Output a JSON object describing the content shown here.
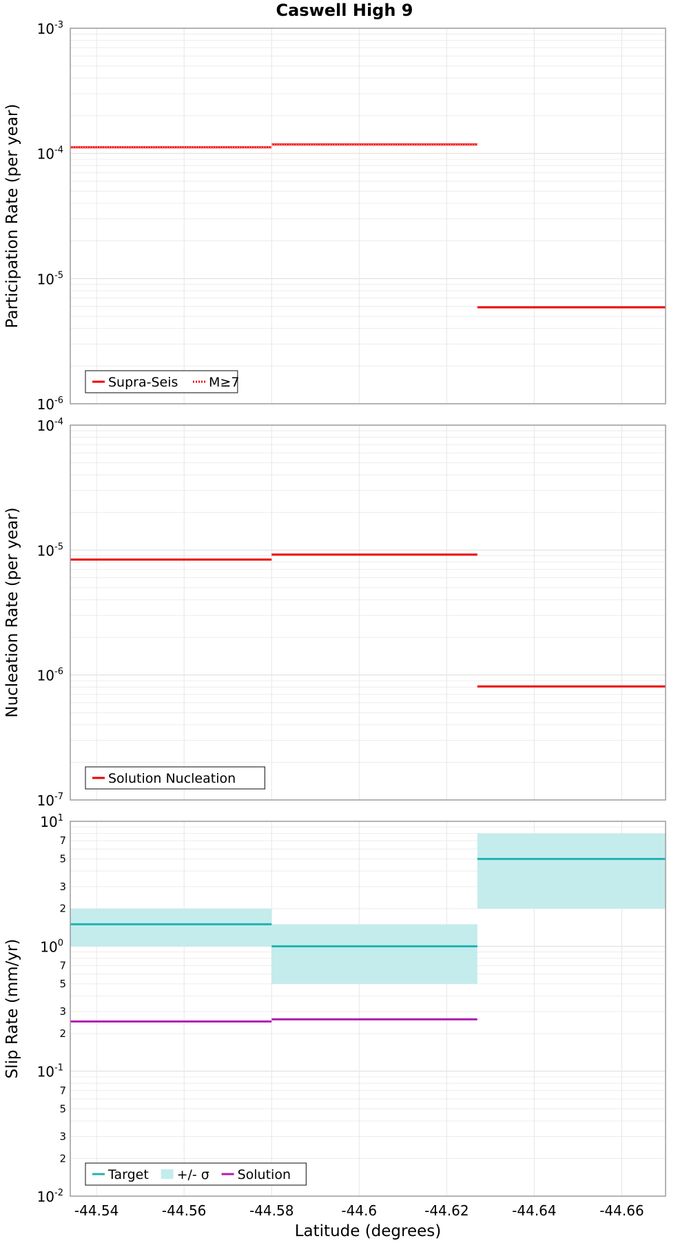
{
  "chart_data": [
    {
      "type": "line",
      "title": "Caswell High 9",
      "ylabel": "Participation Rate (per year)",
      "xlabel": "",
      "yscale": "log",
      "ylim": [
        1e-06,
        0.001
      ],
      "xlim": [
        -44.534,
        -44.67
      ],
      "x_ticks": [
        "-44.54",
        "-44.56",
        "-44.58",
        "-44.6",
        "-44.62",
        "-44.64",
        "-44.66"
      ],
      "y_ticks": [
        {
          "base": "10",
          "exp": "-3",
          "value": 0.001
        },
        {
          "base": "10",
          "exp": "-4",
          "value": 0.0001
        },
        {
          "base": "10",
          "exp": "-5",
          "value": 1e-05
        },
        {
          "base": "10",
          "exp": "-6",
          "value": 1e-06
        }
      ],
      "grid": true,
      "legend_position": "bottom-left",
      "series": [
        {
          "name": "Supra-Seis",
          "style": "solid",
          "color": "#ee0000",
          "segments": [
            {
              "x": [
                -44.534,
                -44.58
              ],
              "y": 0.000112
            },
            {
              "x": [
                -44.58,
                -44.627
              ],
              "y": 0.000118
            },
            {
              "x": [
                -44.627,
                -44.67
              ],
              "y": 5.9e-06
            }
          ]
        },
        {
          "name": "M≥7",
          "style": "dotted",
          "color": "#ee0000",
          "segments": [
            {
              "x": [
                -44.534,
                -44.58
              ],
              "y": 0.000112
            },
            {
              "x": [
                -44.58,
                -44.627
              ],
              "y": 0.000118
            }
          ]
        }
      ]
    },
    {
      "type": "line",
      "title": "",
      "ylabel": "Nucleation Rate (per year)",
      "xlabel": "",
      "yscale": "log",
      "ylim": [
        1e-07,
        0.0001
      ],
      "xlim": [
        -44.534,
        -44.67
      ],
      "x_ticks": [
        "-44.54",
        "-44.56",
        "-44.58",
        "-44.6",
        "-44.62",
        "-44.64",
        "-44.66"
      ],
      "y_ticks": [
        {
          "base": "10",
          "exp": "-4",
          "value": 0.0001
        },
        {
          "base": "10",
          "exp": "-5",
          "value": 1e-05
        },
        {
          "base": "10",
          "exp": "-6",
          "value": 1e-06
        },
        {
          "base": "10",
          "exp": "-7",
          "value": 1e-07
        }
      ],
      "grid": true,
      "legend_position": "bottom-left",
      "series": [
        {
          "name": "Solution Nucleation",
          "style": "solid",
          "color": "#ee0000",
          "segments": [
            {
              "x": [
                -44.534,
                -44.58
              ],
              "y": 8.4e-06
            },
            {
              "x": [
                -44.58,
                -44.627
              ],
              "y": 9.2e-06
            },
            {
              "x": [
                -44.627,
                -44.67
              ],
              "y": 8.1e-07
            }
          ]
        }
      ]
    },
    {
      "type": "line",
      "title": "",
      "ylabel": "Slip Rate (mm/yr)",
      "xlabel": "Latitude (degrees)",
      "yscale": "log",
      "ylim": [
        0.01,
        10
      ],
      "xlim": [
        -44.534,
        -44.67
      ],
      "x_ticks": [
        "-44.54",
        "-44.56",
        "-44.58",
        "-44.6",
        "-44.62",
        "-44.64",
        "-44.66"
      ],
      "y_ticks": [
        {
          "base": "10",
          "exp": "1",
          "value": 10
        },
        {
          "base": "10",
          "exp": "0",
          "value": 1
        },
        {
          "base": "10",
          "exp": "-1",
          "value": 0.1
        },
        {
          "base": "10",
          "exp": "-2",
          "value": 0.01
        }
      ],
      "minor_tick_labels": [
        {
          "label": "7",
          "value": 7
        },
        {
          "label": "5",
          "value": 5
        },
        {
          "label": "3",
          "value": 3
        },
        {
          "label": "2",
          "value": 2
        },
        {
          "label": "7",
          "value": 0.7
        },
        {
          "label": "5",
          "value": 0.5
        },
        {
          "label": "3",
          "value": 0.3
        },
        {
          "label": "2",
          "value": 0.2
        },
        {
          "label": "7",
          "value": 0.07
        },
        {
          "label": "5",
          "value": 0.05
        },
        {
          "label": "3",
          "value": 0.03
        },
        {
          "label": "2",
          "value": 0.02
        }
      ],
      "grid": true,
      "legend_position": "bottom-left",
      "series": [
        {
          "name": "Target",
          "style": "solid",
          "color": "#22b2b2",
          "segments": [
            {
              "x": [
                -44.534,
                -44.58
              ],
              "y": 1.5
            },
            {
              "x": [
                -44.58,
                -44.627
              ],
              "y": 1.0
            },
            {
              "x": [
                -44.627,
                -44.67
              ],
              "y": 5.0
            }
          ]
        },
        {
          "name": "+/- σ",
          "style": "band",
          "color": "#c4ecec",
          "segments": [
            {
              "x": [
                -44.534,
                -44.58
              ],
              "low": 1.0,
              "high": 2.0
            },
            {
              "x": [
                -44.58,
                -44.627
              ],
              "low": 0.5,
              "high": 1.5
            },
            {
              "x": [
                -44.627,
                -44.67
              ],
              "low": 2.0,
              "high": 8.0
            }
          ]
        },
        {
          "name": "Solution",
          "style": "solid",
          "color": "#b21bb2",
          "segments": [
            {
              "x": [
                -44.534,
                -44.58
              ],
              "y": 0.25
            },
            {
              "x": [
                -44.58,
                -44.627
              ],
              "y": 0.26
            }
          ]
        }
      ]
    }
  ]
}
